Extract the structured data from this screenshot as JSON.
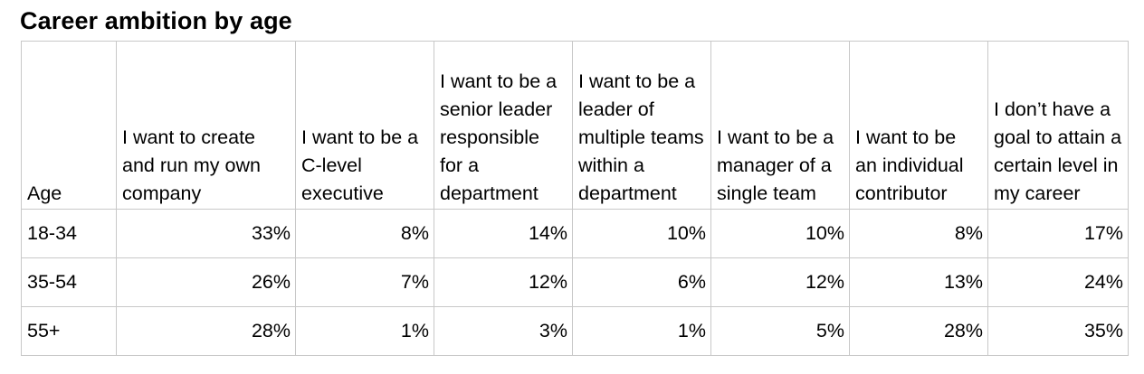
{
  "title": "Career ambition by age",
  "chart_data": {
    "type": "table",
    "title": "Career ambition by age",
    "columns": [
      "Age",
      "I want to create and run my own company",
      "I want to be a C-level executive",
      "I want to be a senior leader responsible for a department",
      "I want to be a leader of multiple teams within a department",
      "I want to be a manager of a single team",
      "I want to be an individual contributor",
      "I don’t have a goal to attain a certain level in my career"
    ],
    "rows": [
      {
        "age": "18-34",
        "values": [
          "33%",
          "8%",
          "14%",
          "10%",
          "10%",
          "8%",
          "17%"
        ]
      },
      {
        "age": "35-54",
        "values": [
          "26%",
          "7%",
          "12%",
          "6%",
          "12%",
          "13%",
          "24%"
        ]
      },
      {
        "age": "55+",
        "values": [
          "28%",
          "1%",
          "3%",
          "1%",
          "5%",
          "28%",
          "35%"
        ]
      }
    ]
  }
}
